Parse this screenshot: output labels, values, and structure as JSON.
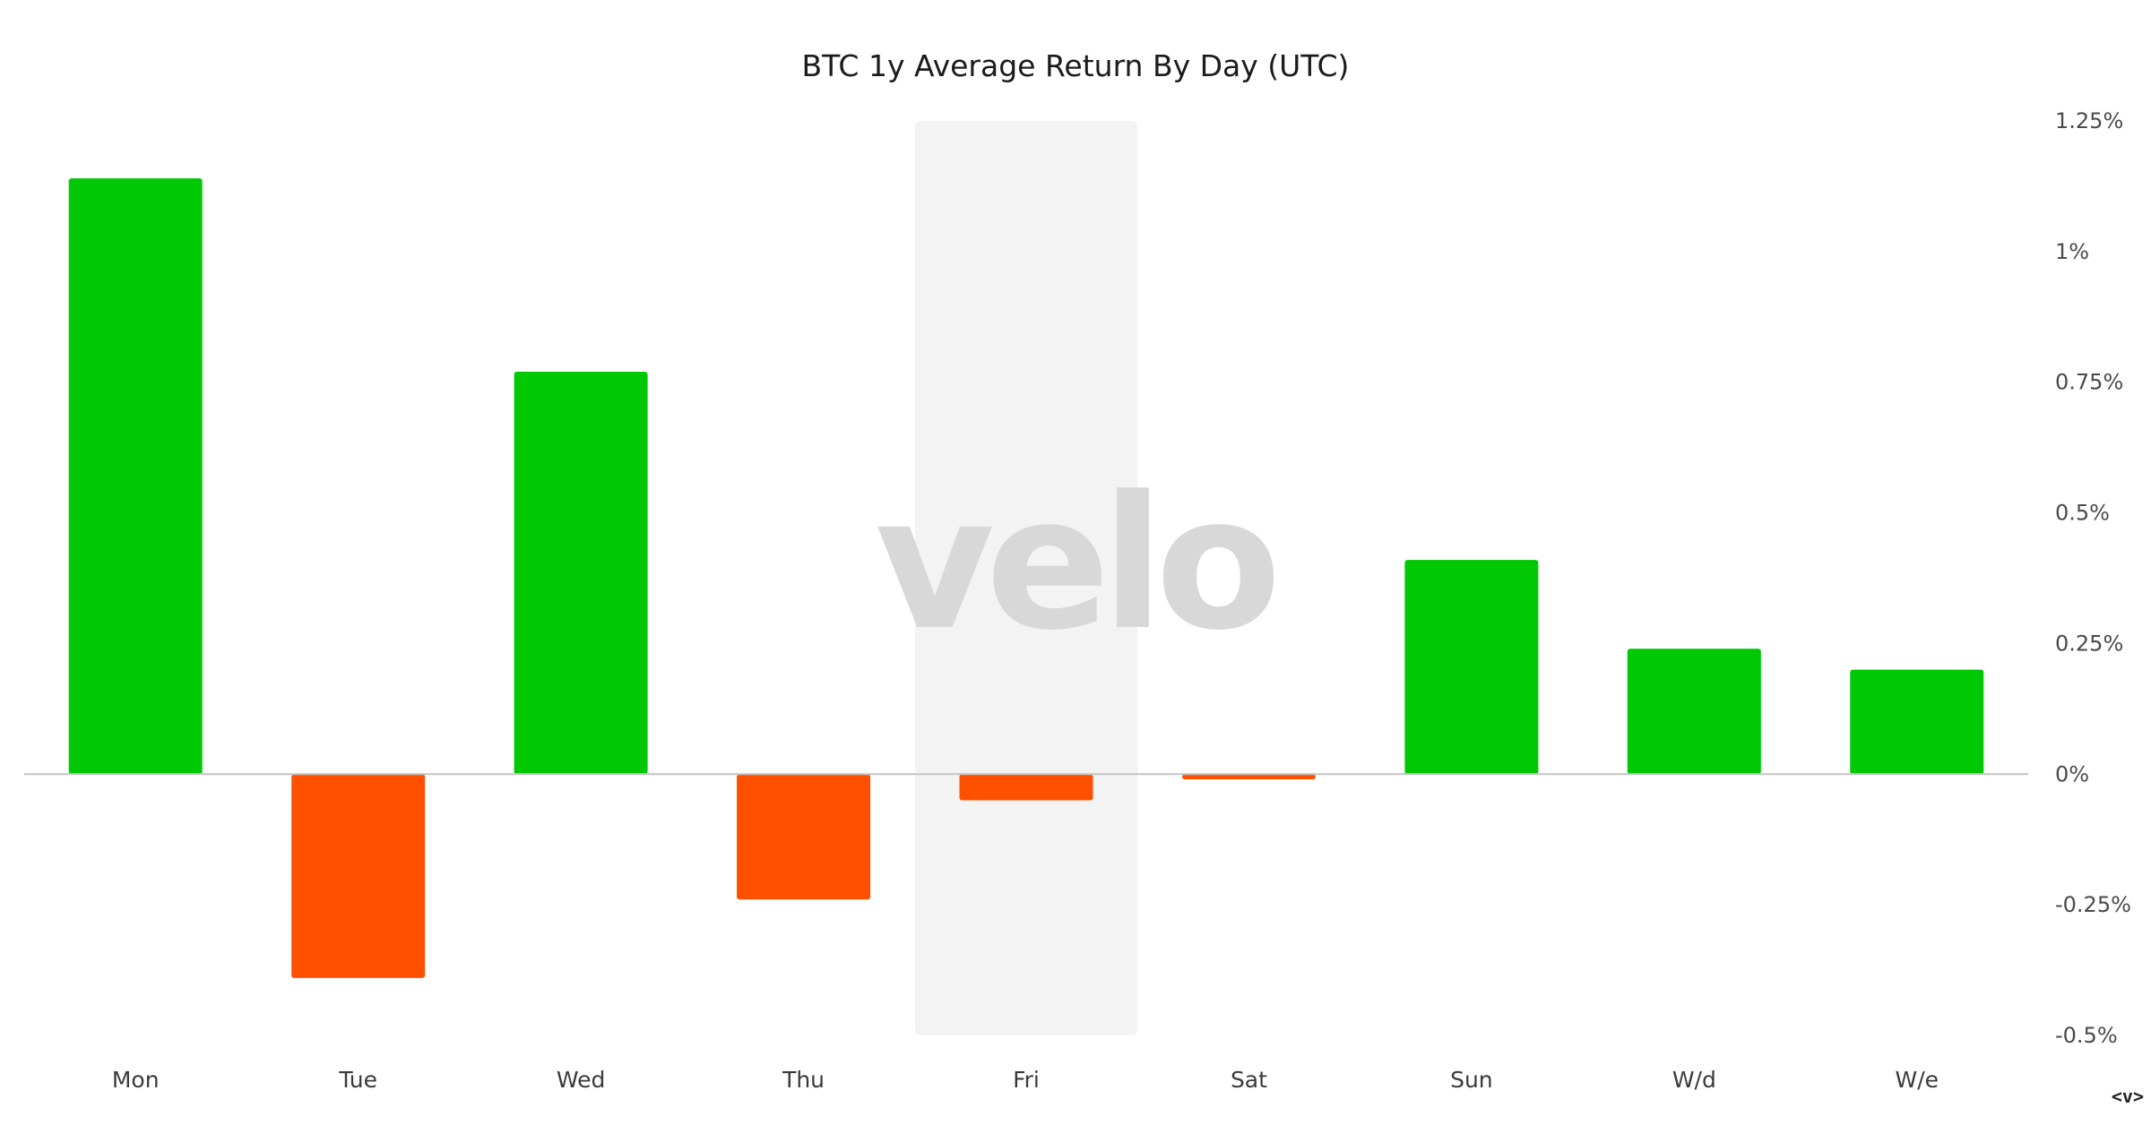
{
  "colors": {
    "positive": "#00c805",
    "negative": "#ff5000",
    "highlight": "#f3f3f3",
    "zero_line": "#c4c4c4",
    "watermark": "#d8d8d8"
  },
  "watermark": "velo",
  "nav": {
    "label": "<v>"
  },
  "chart_data": {
    "type": "bar",
    "title": "BTC 1y Average Return By Day (UTC)",
    "xlabel": "",
    "ylabel": "",
    "categories": [
      "Mon",
      "Tue",
      "Wed",
      "Thu",
      "Fri",
      "Sat",
      "Sun",
      "W/d",
      "W/e"
    ],
    "values": [
      1.14,
      -0.39,
      0.77,
      -0.24,
      -0.05,
      -0.01,
      0.41,
      0.24,
      0.2
    ],
    "value_unit": "%",
    "highlighted_category": "Fri",
    "ylim": [
      -0.5,
      1.25
    ],
    "yticks": [
      -0.5,
      -0.25,
      0,
      0.25,
      0.5,
      0.75,
      1,
      1.25
    ],
    "ytick_labels": [
      "-0.5%",
      "-0.25%",
      "0%",
      "0.25%",
      "0.5%",
      "0.75%",
      "1%",
      "1.25%"
    ],
    "y_axis_position": "right",
    "grid": false,
    "legend": "none"
  }
}
